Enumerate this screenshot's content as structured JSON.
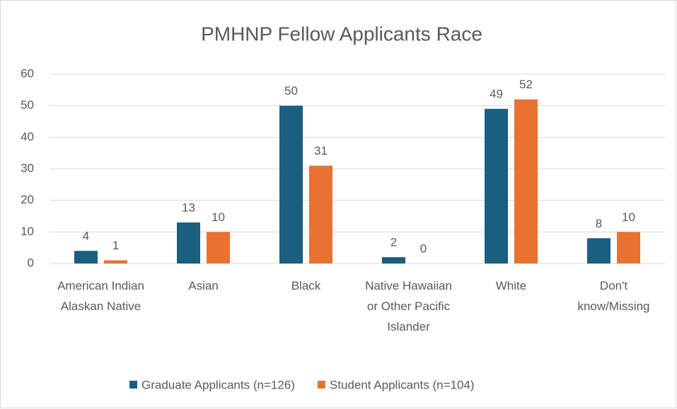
{
  "chart_data": {
    "type": "bar",
    "title": "PMHNP Fellow Applicants Race",
    "categories": [
      "American Indian Alaskan Native",
      "Asian",
      "Black",
      "Native Hawaiian or Other Pacific Islander",
      "White",
      "Don't know/Missing"
    ],
    "series": [
      {
        "name": "Graduate Applicants (n=126)",
        "color": "#1a5e80",
        "values": [
          4,
          13,
          50,
          2,
          49,
          8
        ]
      },
      {
        "name": "Student Applicants (n=104)",
        "color": "#e97132",
        "values": [
          1,
          10,
          31,
          0,
          52,
          10
        ]
      }
    ],
    "ylim": [
      0,
      60
    ],
    "yticks": [
      0,
      10,
      20,
      30,
      40,
      50,
      60
    ],
    "grid": true,
    "legend": "bottom"
  }
}
